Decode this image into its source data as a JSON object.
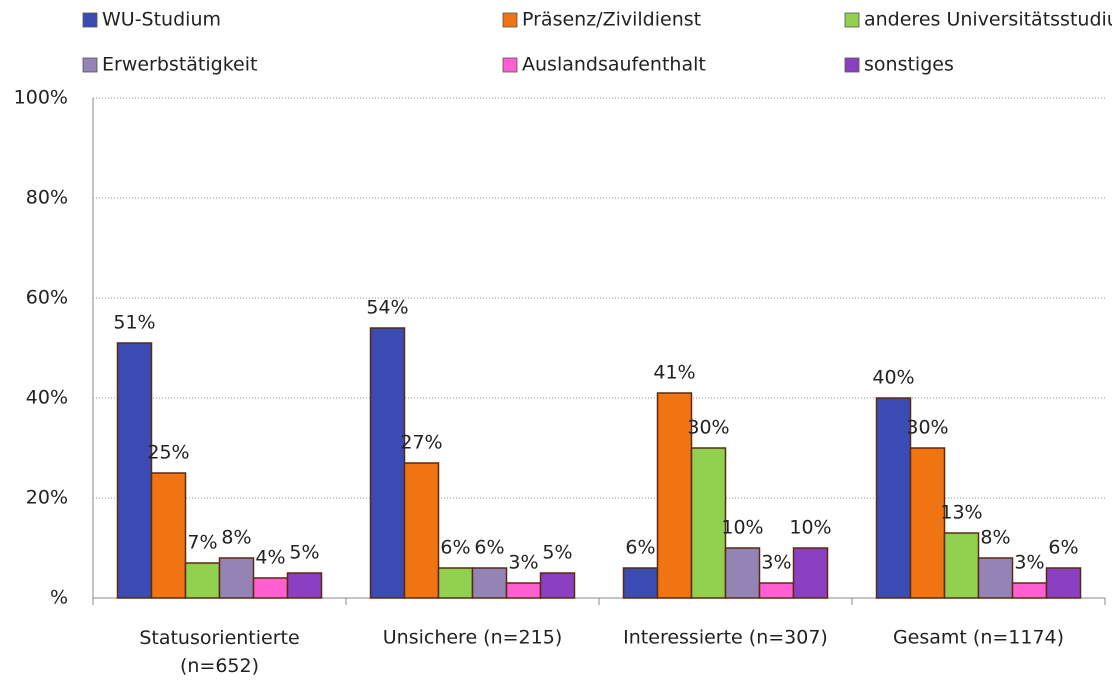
{
  "chart_data": {
    "type": "bar",
    "categories": [
      "Statusorientierte (n=652)",
      "Unsichere (n=215)",
      "Interessierte (n=307)",
      "Gesamt (n=1174)"
    ],
    "series": [
      {
        "name": "WU-Studium",
        "color": "#3a4bb3",
        "values": [
          51,
          54,
          6,
          40
        ],
        "value_labels": [
          "51%",
          "54%",
          "6%",
          "40%"
        ]
      },
      {
        "name": "Präsenz/Zivildienst",
        "color": "#f07411",
        "values": [
          25,
          27,
          41,
          30
        ],
        "value_labels": [
          "25%",
          "27%",
          "41%",
          "30%"
        ]
      },
      {
        "name": "anderes Universitätsstudium",
        "color": "#92d050",
        "values": [
          7,
          6,
          30,
          13
        ],
        "value_labels": [
          "7%",
          "6%",
          "30%",
          "13%"
        ]
      },
      {
        "name": "Erwerbstätigkeit",
        "color": "#9484b6",
        "values": [
          8,
          6,
          10,
          8
        ],
        "value_labels": [
          "8%",
          "6%",
          "10%",
          "8%"
        ]
      },
      {
        "name": "Auslandsaufenthalt",
        "color": "#ff5fd0",
        "values": [
          4,
          3,
          3,
          3
        ],
        "value_labels": [
          "4%",
          "3%",
          "3%",
          "3%"
        ]
      },
      {
        "name": "sonstiges",
        "color": "#8b3fc1",
        "values": [
          5,
          5,
          10,
          6
        ],
        "value_labels": [
          "5%",
          "5%",
          "10%",
          "6%"
        ]
      }
    ],
    "ylim": [
      0,
      100
    ],
    "yticks": [
      {
        "value": 0,
        "label": "%"
      },
      {
        "value": 20,
        "label": "20%"
      },
      {
        "value": 40,
        "label": "40%"
      },
      {
        "value": 60,
        "label": "60%"
      },
      {
        "value": 80,
        "label": "80%"
      },
      {
        "value": 100,
        "label": "100%"
      }
    ],
    "grid": true,
    "legend": "top"
  }
}
